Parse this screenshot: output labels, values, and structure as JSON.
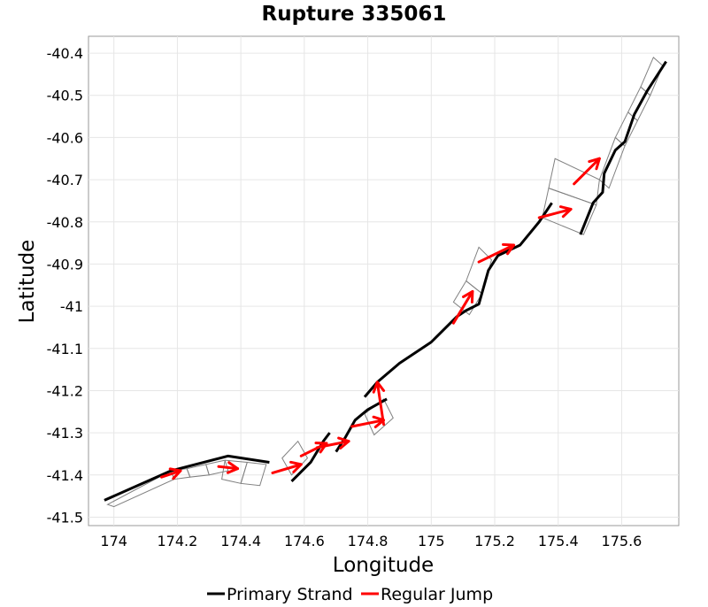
{
  "chart_data": {
    "type": "line",
    "title": "Rupture 335061",
    "xlabel": "Longitude",
    "ylabel": "Latitude",
    "xlim": [
      173.92,
      175.78
    ],
    "ylim": [
      -41.52,
      -40.36
    ],
    "xticks": [
      174,
      174.2,
      174.4,
      174.6,
      174.8,
      175,
      175.2,
      175.4,
      175.6
    ],
    "xtick_labels": [
      "174",
      "174.2",
      "174.4",
      "174.6",
      "174.8",
      "175",
      "175.2",
      "175.4",
      "175.6"
    ],
    "yticks": [
      -40.4,
      -40.5,
      -40.6,
      -40.7,
      -40.8,
      -40.9,
      -41.0,
      -41.1,
      -41.2,
      -41.3,
      -41.4,
      -41.5
    ],
    "ytick_labels": [
      "-40.4",
      "-40.5",
      "-40.6",
      "-40.7",
      "-40.8",
      "-40.9",
      "-41",
      "-41.1",
      "-41.2",
      "-41.3",
      "-41.4",
      "-41.5"
    ],
    "grid": true,
    "legend_position": "bottom",
    "legend": [
      {
        "label": "Primary Strand",
        "color": "#000000"
      },
      {
        "label": "Regular Jump",
        "color": "#ff0000"
      }
    ],
    "outlines": [
      [
        [
          173.98,
          -41.47
        ],
        [
          174.18,
          -41.39
        ],
        [
          174.19,
          -41.41
        ],
        [
          174.0,
          -41.475
        ]
      ],
      [
        [
          174.18,
          -41.39
        ],
        [
          174.23,
          -41.385
        ],
        [
          174.24,
          -41.405
        ],
        [
          174.19,
          -41.41
        ]
      ],
      [
        [
          174.23,
          -41.385
        ],
        [
          174.29,
          -41.375
        ],
        [
          174.3,
          -41.4
        ],
        [
          174.24,
          -41.405
        ]
      ],
      [
        [
          174.29,
          -41.375
        ],
        [
          174.35,
          -41.365
        ],
        [
          174.36,
          -41.39
        ],
        [
          174.3,
          -41.4
        ]
      ],
      [
        [
          174.35,
          -41.365
        ],
        [
          174.42,
          -41.37
        ],
        [
          174.4,
          -41.42
        ],
        [
          174.34,
          -41.41
        ]
      ],
      [
        [
          174.42,
          -41.37
        ],
        [
          174.48,
          -41.375
        ],
        [
          174.46,
          -41.425
        ],
        [
          174.4,
          -41.42
        ]
      ],
      [
        [
          174.53,
          -41.36
        ],
        [
          174.58,
          -41.32
        ],
        [
          174.61,
          -41.36
        ],
        [
          174.56,
          -41.4
        ]
      ],
      [
        [
          174.79,
          -41.255
        ],
        [
          174.85,
          -41.22
        ],
        [
          174.88,
          -41.265
        ],
        [
          174.82,
          -41.305
        ]
      ],
      [
        [
          175.07,
          -40.99
        ],
        [
          175.11,
          -40.94
        ],
        [
          175.16,
          -40.97
        ],
        [
          175.12,
          -41.02
        ]
      ],
      [
        [
          175.11,
          -40.94
        ],
        [
          175.15,
          -40.86
        ],
        [
          175.19,
          -40.89
        ],
        [
          175.16,
          -40.97
        ]
      ],
      [
        [
          175.37,
          -40.72
        ],
        [
          175.52,
          -40.76
        ],
        [
          175.48,
          -40.83
        ],
        [
          175.35,
          -40.79
        ]
      ],
      [
        [
          175.39,
          -40.65
        ],
        [
          175.53,
          -40.7
        ],
        [
          175.52,
          -40.76
        ],
        [
          175.37,
          -40.72
        ]
      ],
      [
        [
          175.53,
          -40.7
        ],
        [
          175.58,
          -40.6
        ],
        [
          175.61,
          -40.62
        ],
        [
          175.56,
          -40.72
        ]
      ],
      [
        [
          175.58,
          -40.6
        ],
        [
          175.62,
          -40.54
        ],
        [
          175.65,
          -40.56
        ],
        [
          175.61,
          -40.62
        ]
      ],
      [
        [
          175.62,
          -40.54
        ],
        [
          175.66,
          -40.48
        ],
        [
          175.69,
          -40.5
        ],
        [
          175.65,
          -40.56
        ]
      ],
      [
        [
          175.66,
          -40.48
        ],
        [
          175.7,
          -40.41
        ],
        [
          175.73,
          -40.43
        ],
        [
          175.69,
          -40.5
        ]
      ]
    ],
    "primary_strand": [
      [
        [
          173.97,
          -41.46
        ],
        [
          174.18,
          -41.39
        ],
        [
          174.36,
          -41.355
        ],
        [
          174.49,
          -41.37
        ]
      ],
      [
        [
          174.56,
          -41.415
        ],
        [
          174.62,
          -41.37
        ],
        [
          174.66,
          -41.32
        ],
        [
          174.68,
          -41.3
        ]
      ],
      [
        [
          174.7,
          -41.345
        ],
        [
          174.73,
          -41.31
        ],
        [
          174.76,
          -41.27
        ],
        [
          174.8,
          -41.245
        ],
        [
          174.86,
          -41.22
        ]
      ],
      [
        [
          174.79,
          -41.215
        ],
        [
          174.83,
          -41.18
        ],
        [
          174.9,
          -41.135
        ],
        [
          175.0,
          -41.085
        ],
        [
          175.08,
          -41.025
        ],
        [
          175.11,
          -41.01
        ],
        [
          175.15,
          -40.995
        ],
        [
          175.18,
          -40.915
        ],
        [
          175.21,
          -40.88
        ],
        [
          175.28,
          -40.855
        ],
        [
          175.34,
          -40.8
        ],
        [
          175.38,
          -40.755
        ]
      ],
      [
        [
          175.47,
          -40.83
        ],
        [
          175.51,
          -40.755
        ],
        [
          175.54,
          -40.73
        ],
        [
          175.545,
          -40.685
        ],
        [
          175.58,
          -40.63
        ],
        [
          175.61,
          -40.61
        ],
        [
          175.64,
          -40.545
        ],
        [
          175.68,
          -40.49
        ],
        [
          175.74,
          -40.42
        ]
      ]
    ],
    "regular_jumps": [
      [
        [
          174.15,
          -41.405
        ],
        [
          174.21,
          -41.39
        ]
      ],
      [
        [
          174.33,
          -41.38
        ],
        [
          174.39,
          -41.385
        ]
      ],
      [
        [
          174.5,
          -41.395
        ],
        [
          174.59,
          -41.375
        ]
      ],
      [
        [
          174.59,
          -41.355
        ],
        [
          174.67,
          -41.325
        ]
      ],
      [
        [
          174.64,
          -41.335
        ],
        [
          174.74,
          -41.32
        ]
      ],
      [
        [
          174.75,
          -41.285
        ],
        [
          174.85,
          -41.27
        ]
      ],
      [
        [
          174.85,
          -41.28
        ],
        [
          174.83,
          -41.18
        ]
      ],
      [
        [
          175.07,
          -41.04
        ],
        [
          175.13,
          -40.965
        ]
      ],
      [
        [
          175.15,
          -40.895
        ],
        [
          175.26,
          -40.855
        ]
      ],
      [
        [
          175.34,
          -40.79
        ],
        [
          175.44,
          -40.77
        ]
      ],
      [
        [
          175.45,
          -40.71
        ],
        [
          175.53,
          -40.65
        ]
      ]
    ]
  }
}
